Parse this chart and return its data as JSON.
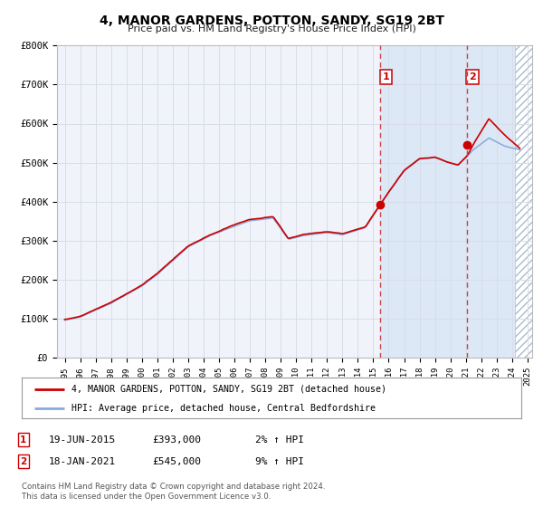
{
  "title": "4, MANOR GARDENS, POTTON, SANDY, SG19 2BT",
  "subtitle": "Price paid vs. HM Land Registry's House Price Index (HPI)",
  "background_color": "#ffffff",
  "plot_bg_color": "#f0f4fa",
  "grid_color": "#d8dde8",
  "sale1_date": 2015.46,
  "sale1_price": 393000,
  "sale1_label": "1",
  "sale1_date_str": "19-JUN-2015",
  "sale1_price_str": "£393,000",
  "sale1_pct": "2% ↑ HPI",
  "sale2_date": 2021.05,
  "sale2_price": 545000,
  "sale2_label": "2",
  "sale2_date_str": "18-JAN-2021",
  "sale2_price_str": "£545,000",
  "sale2_pct": "9% ↑ HPI",
  "legend_label1": "4, MANOR GARDENS, POTTON, SANDY, SG19 2BT (detached house)",
  "legend_label2": "HPI: Average price, detached house, Central Bedfordshire",
  "footer1": "Contains HM Land Registry data © Crown copyright and database right 2024.",
  "footer2": "This data is licensed under the Open Government Licence v3.0.",
  "red_line_color": "#cc0000",
  "blue_line_color": "#88aadd",
  "sale_dot_color": "#cc0000",
  "shade_color": "#dce8f5",
  "ylim": [
    0,
    800000
  ],
  "xlim_start": 1994.5,
  "xlim_end": 2025.3,
  "yticks": [
    0,
    100000,
    200000,
    300000,
    400000,
    500000,
    600000,
    700000,
    800000
  ],
  "ytick_labels": [
    "£0",
    "£100K",
    "£200K",
    "£300K",
    "£400K",
    "£500K",
    "£600K",
    "£700K",
    "£800K"
  ],
  "xticks": [
    1995,
    1996,
    1997,
    1998,
    1999,
    2000,
    2001,
    2002,
    2003,
    2004,
    2005,
    2006,
    2007,
    2008,
    2009,
    2010,
    2011,
    2012,
    2013,
    2014,
    2015,
    2016,
    2017,
    2018,
    2019,
    2020,
    2021,
    2022,
    2023,
    2024,
    2025
  ]
}
